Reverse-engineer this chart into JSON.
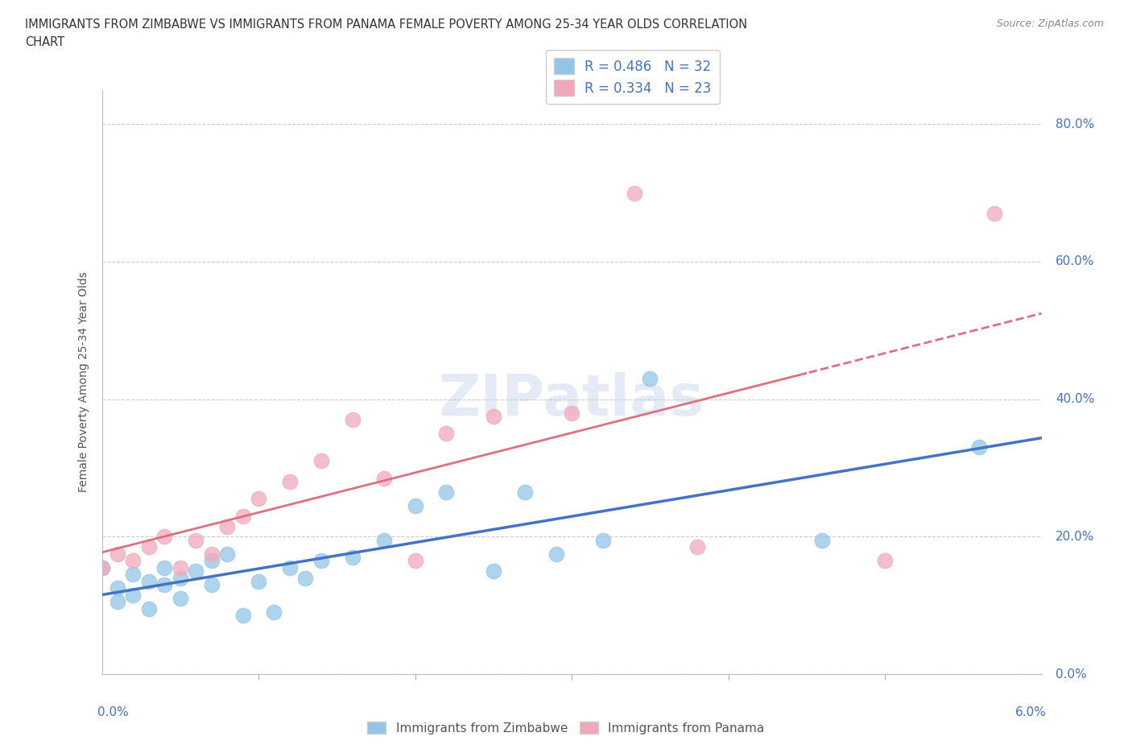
{
  "title_line1": "IMMIGRANTS FROM ZIMBABWE VS IMMIGRANTS FROM PANAMA FEMALE POVERTY AMONG 25-34 YEAR OLDS CORRELATION",
  "title_line2": "CHART",
  "source": "Source: ZipAtlas.com",
  "ylabel": "Female Poverty Among 25-34 Year Olds",
  "legend1_label": "Immigrants from Zimbabwe",
  "legend2_label": "Immigrants from Panama",
  "R1": 0.486,
  "N1": 32,
  "R2": 0.334,
  "N2": 23,
  "color_blue": "#92c5e8",
  "color_pink": "#f2a8bb",
  "color_blue_line": "#4472c4",
  "color_pink_line": "#e07080",
  "color_blue_text": "#4472c4",
  "watermark_color": "#d5dff0",
  "zimbabwe_x": [
    0.0,
    0.001,
    0.001,
    0.002,
    0.002,
    0.003,
    0.003,
    0.004,
    0.004,
    0.005,
    0.005,
    0.006,
    0.007,
    0.007,
    0.008,
    0.009,
    0.01,
    0.011,
    0.012,
    0.013,
    0.014,
    0.016,
    0.018,
    0.02,
    0.022,
    0.025,
    0.027,
    0.029,
    0.032,
    0.035,
    0.046,
    0.056
  ],
  "zimbabwe_y": [
    0.155,
    0.125,
    0.105,
    0.145,
    0.115,
    0.135,
    0.095,
    0.13,
    0.155,
    0.14,
    0.11,
    0.15,
    0.165,
    0.13,
    0.175,
    0.085,
    0.135,
    0.09,
    0.155,
    0.14,
    0.165,
    0.17,
    0.195,
    0.245,
    0.265,
    0.15,
    0.265,
    0.175,
    0.195,
    0.43,
    0.195,
    0.33
  ],
  "panama_x": [
    0.0,
    0.001,
    0.002,
    0.003,
    0.004,
    0.005,
    0.006,
    0.007,
    0.008,
    0.009,
    0.01,
    0.012,
    0.014,
    0.016,
    0.018,
    0.02,
    0.022,
    0.025,
    0.03,
    0.034,
    0.038,
    0.05,
    0.057
  ],
  "panama_y": [
    0.155,
    0.175,
    0.165,
    0.185,
    0.2,
    0.155,
    0.195,
    0.175,
    0.215,
    0.23,
    0.255,
    0.28,
    0.31,
    0.37,
    0.285,
    0.165,
    0.35,
    0.375,
    0.38,
    0.7,
    0.185,
    0.165,
    0.67
  ],
  "xlim": [
    0,
    0.06
  ],
  "ylim": [
    0,
    0.85
  ],
  "yticks": [
    0.0,
    0.2,
    0.4,
    0.6,
    0.8
  ]
}
